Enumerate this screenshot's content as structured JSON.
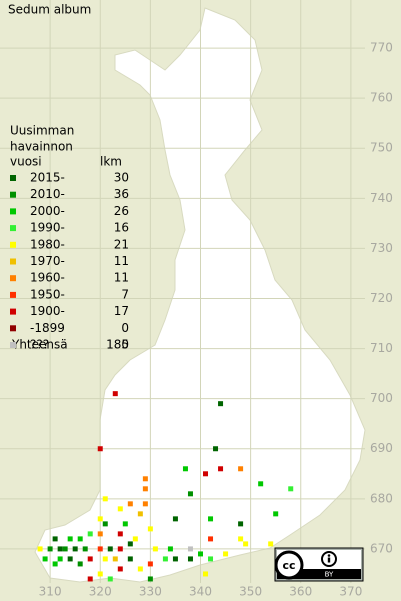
{
  "title": "Sedum album",
  "legend": {
    "header": [
      "Uusimman",
      "havainnon",
      "vuosi"
    ],
    "count_header": "lkm",
    "items": [
      {
        "label": "2015-",
        "color": "#006400",
        "count": 30
      },
      {
        "label": "2010-",
        "color": "#009000",
        "count": 36
      },
      {
        "label": "2000-",
        "color": "#00c800",
        "count": 26
      },
      {
        "label": "1990-",
        "color": "#33f033",
        "count": 16
      },
      {
        "label": "1980-",
        "color": "#ffff00",
        "count": 21
      },
      {
        "label": "1970-",
        "color": "#f0c000",
        "count": 11
      },
      {
        "label": "1960-",
        "color": "#ff8000",
        "count": 11
      },
      {
        "label": "1950-",
        "color": "#ff3000",
        "count": 7
      },
      {
        "label": "1900-",
        "color": "#d00000",
        "count": 17
      },
      {
        "label": "-1899",
        "color": "#900000",
        "count": 0
      },
      {
        "label": "???",
        "color": "#c0c0c0",
        "count": 5
      }
    ],
    "total_label": "Yhteensä",
    "total": 180
  },
  "map": {
    "xlim": [
      300,
      380
    ],
    "ylim": [
      659.6,
      779.6
    ],
    "xticks": [
      310,
      320,
      330,
      340,
      350,
      360,
      370
    ],
    "yticks": [
      670,
      680,
      690,
      700,
      710,
      720,
      730,
      740,
      750,
      760,
      770
    ],
    "squares": [
      [
        323,
        701,
        8
      ],
      [
        344,
        699,
        0
      ],
      [
        320,
        690,
        8
      ],
      [
        343,
        690,
        0
      ],
      [
        337,
        686,
        2
      ],
      [
        341,
        685,
        8
      ],
      [
        344,
        686,
        8
      ],
      [
        348,
        686,
        6
      ],
      [
        352,
        683,
        2
      ],
      [
        329,
        684,
        6
      ],
      [
        329,
        682,
        6
      ],
      [
        338,
        681,
        1
      ],
      [
        358,
        682,
        3
      ],
      [
        321,
        680,
        4
      ],
      [
        324,
        678,
        4
      ],
      [
        326,
        679,
        6
      ],
      [
        329,
        679,
        6
      ],
      [
        320,
        676,
        4
      ],
      [
        321,
        675,
        1
      ],
      [
        325,
        675,
        2
      ],
      [
        328,
        677,
        5
      ],
      [
        335,
        676,
        0
      ],
      [
        342,
        676,
        2
      ],
      [
        348,
        675,
        0
      ],
      [
        355,
        677,
        2
      ],
      [
        320,
        673,
        6
      ],
      [
        348,
        672,
        4
      ],
      [
        354,
        671,
        4
      ],
      [
        342,
        672,
        7
      ],
      [
        330,
        674,
        4
      ],
      [
        324,
        673,
        8
      ],
      [
        326,
        671,
        0
      ],
      [
        308,
        670,
        4
      ],
      [
        310,
        670,
        1
      ],
      [
        311,
        672,
        0
      ],
      [
        312,
        670,
        0
      ],
      [
        313,
        670,
        1
      ],
      [
        314,
        672,
        2
      ],
      [
        315,
        670,
        0
      ],
      [
        316,
        672,
        2
      ],
      [
        317,
        670,
        1
      ],
      [
        318,
        673,
        3
      ],
      [
        318,
        668,
        8
      ],
      [
        320,
        670,
        7
      ],
      [
        321,
        668,
        4
      ],
      [
        322,
        670,
        0
      ],
      [
        323,
        668,
        5
      ],
      [
        324,
        666,
        8
      ],
      [
        312,
        668,
        2
      ],
      [
        314,
        668,
        0
      ],
      [
        316,
        667,
        1
      ],
      [
        318,
        664,
        8
      ],
      [
        320,
        665,
        4
      ],
      [
        322,
        664,
        3
      ],
      [
        326,
        668,
        0
      ],
      [
        328,
        666,
        4
      ],
      [
        330,
        664,
        1
      ],
      [
        331,
        670,
        4
      ],
      [
        333,
        668,
        3
      ],
      [
        335,
        668,
        0
      ],
      [
        338,
        670,
        10
      ],
      [
        338,
        668,
        0
      ],
      [
        340,
        669,
        2
      ],
      [
        341,
        665,
        4
      ],
      [
        342,
        668,
        3
      ],
      [
        345,
        669,
        4
      ],
      [
        349,
        671,
        4
      ],
      [
        334,
        670,
        2
      ],
      [
        324,
        670,
        8
      ],
      [
        327,
        672,
        4
      ],
      [
        330,
        667,
        7
      ],
      [
        309,
        668,
        2
      ],
      [
        311,
        667,
        2
      ]
    ]
  },
  "license": {
    "cc": "cc",
    "by": "BY"
  }
}
